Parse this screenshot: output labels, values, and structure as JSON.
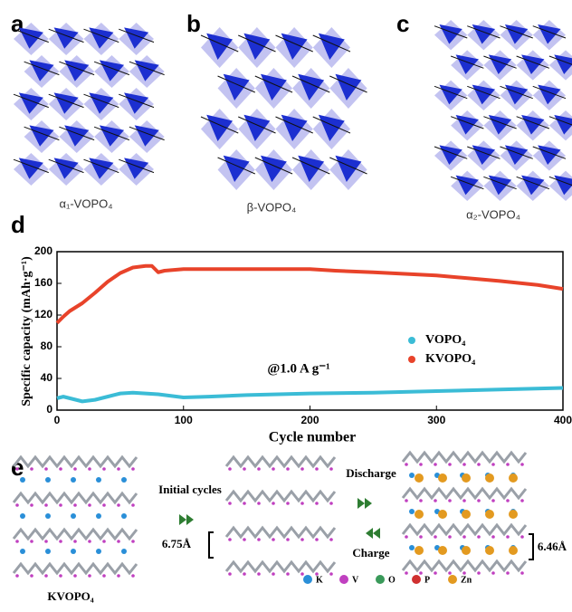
{
  "panels": {
    "a": {
      "label": "a",
      "caption": "α₁-VOPO₄"
    },
    "b": {
      "label": "b",
      "caption": "β-VOPO₄"
    },
    "c": {
      "label": "c",
      "caption": "α₂-VOPO₄"
    },
    "d": {
      "label": "d"
    },
    "e": {
      "label": "e",
      "initial": "Initial cycles",
      "discharge": "Discharge",
      "charge": "Charge",
      "spacing_left": "6.75Å",
      "spacing_right": "6.46Å",
      "material": "KVOPO₄",
      "legend": [
        "K",
        "V",
        "O",
        "P",
        "Zn"
      ]
    }
  },
  "chart_data": {
    "type": "line",
    "xlabel": "Cycle number",
    "ylabel": "Specific capacity (mAh·g⁻¹)",
    "annotation": "@1.0 A g⁻¹",
    "xlim": [
      0,
      400
    ],
    "xticks": [
      0,
      100,
      200,
      300,
      400
    ],
    "ylim": [
      0,
      200
    ],
    "yticks": [
      0,
      40,
      80,
      120,
      160,
      200
    ],
    "legend": "center-right",
    "series": [
      {
        "name": "VOPO₄",
        "color": "#3bbcd6",
        "x": [
          0,
          5,
          10,
          20,
          30,
          40,
          50,
          60,
          70,
          80,
          100,
          120,
          150,
          200,
          250,
          300,
          350,
          400
        ],
        "values": [
          15,
          17,
          15,
          11,
          13,
          17,
          21,
          22,
          21,
          20,
          16,
          17,
          19,
          21,
          22,
          24,
          26,
          28
        ]
      },
      {
        "name": "KVOPO₄",
        "color": "#e8432a",
        "x": [
          0,
          5,
          10,
          20,
          30,
          40,
          50,
          60,
          70,
          75,
          80,
          85,
          100,
          120,
          150,
          200,
          220,
          250,
          300,
          350,
          380,
          400
        ],
        "values": [
          110,
          118,
          125,
          135,
          148,
          162,
          173,
          180,
          182,
          182,
          174,
          176,
          178,
          178,
          178,
          178,
          176,
          174,
          170,
          163,
          158,
          153
        ]
      }
    ]
  }
}
